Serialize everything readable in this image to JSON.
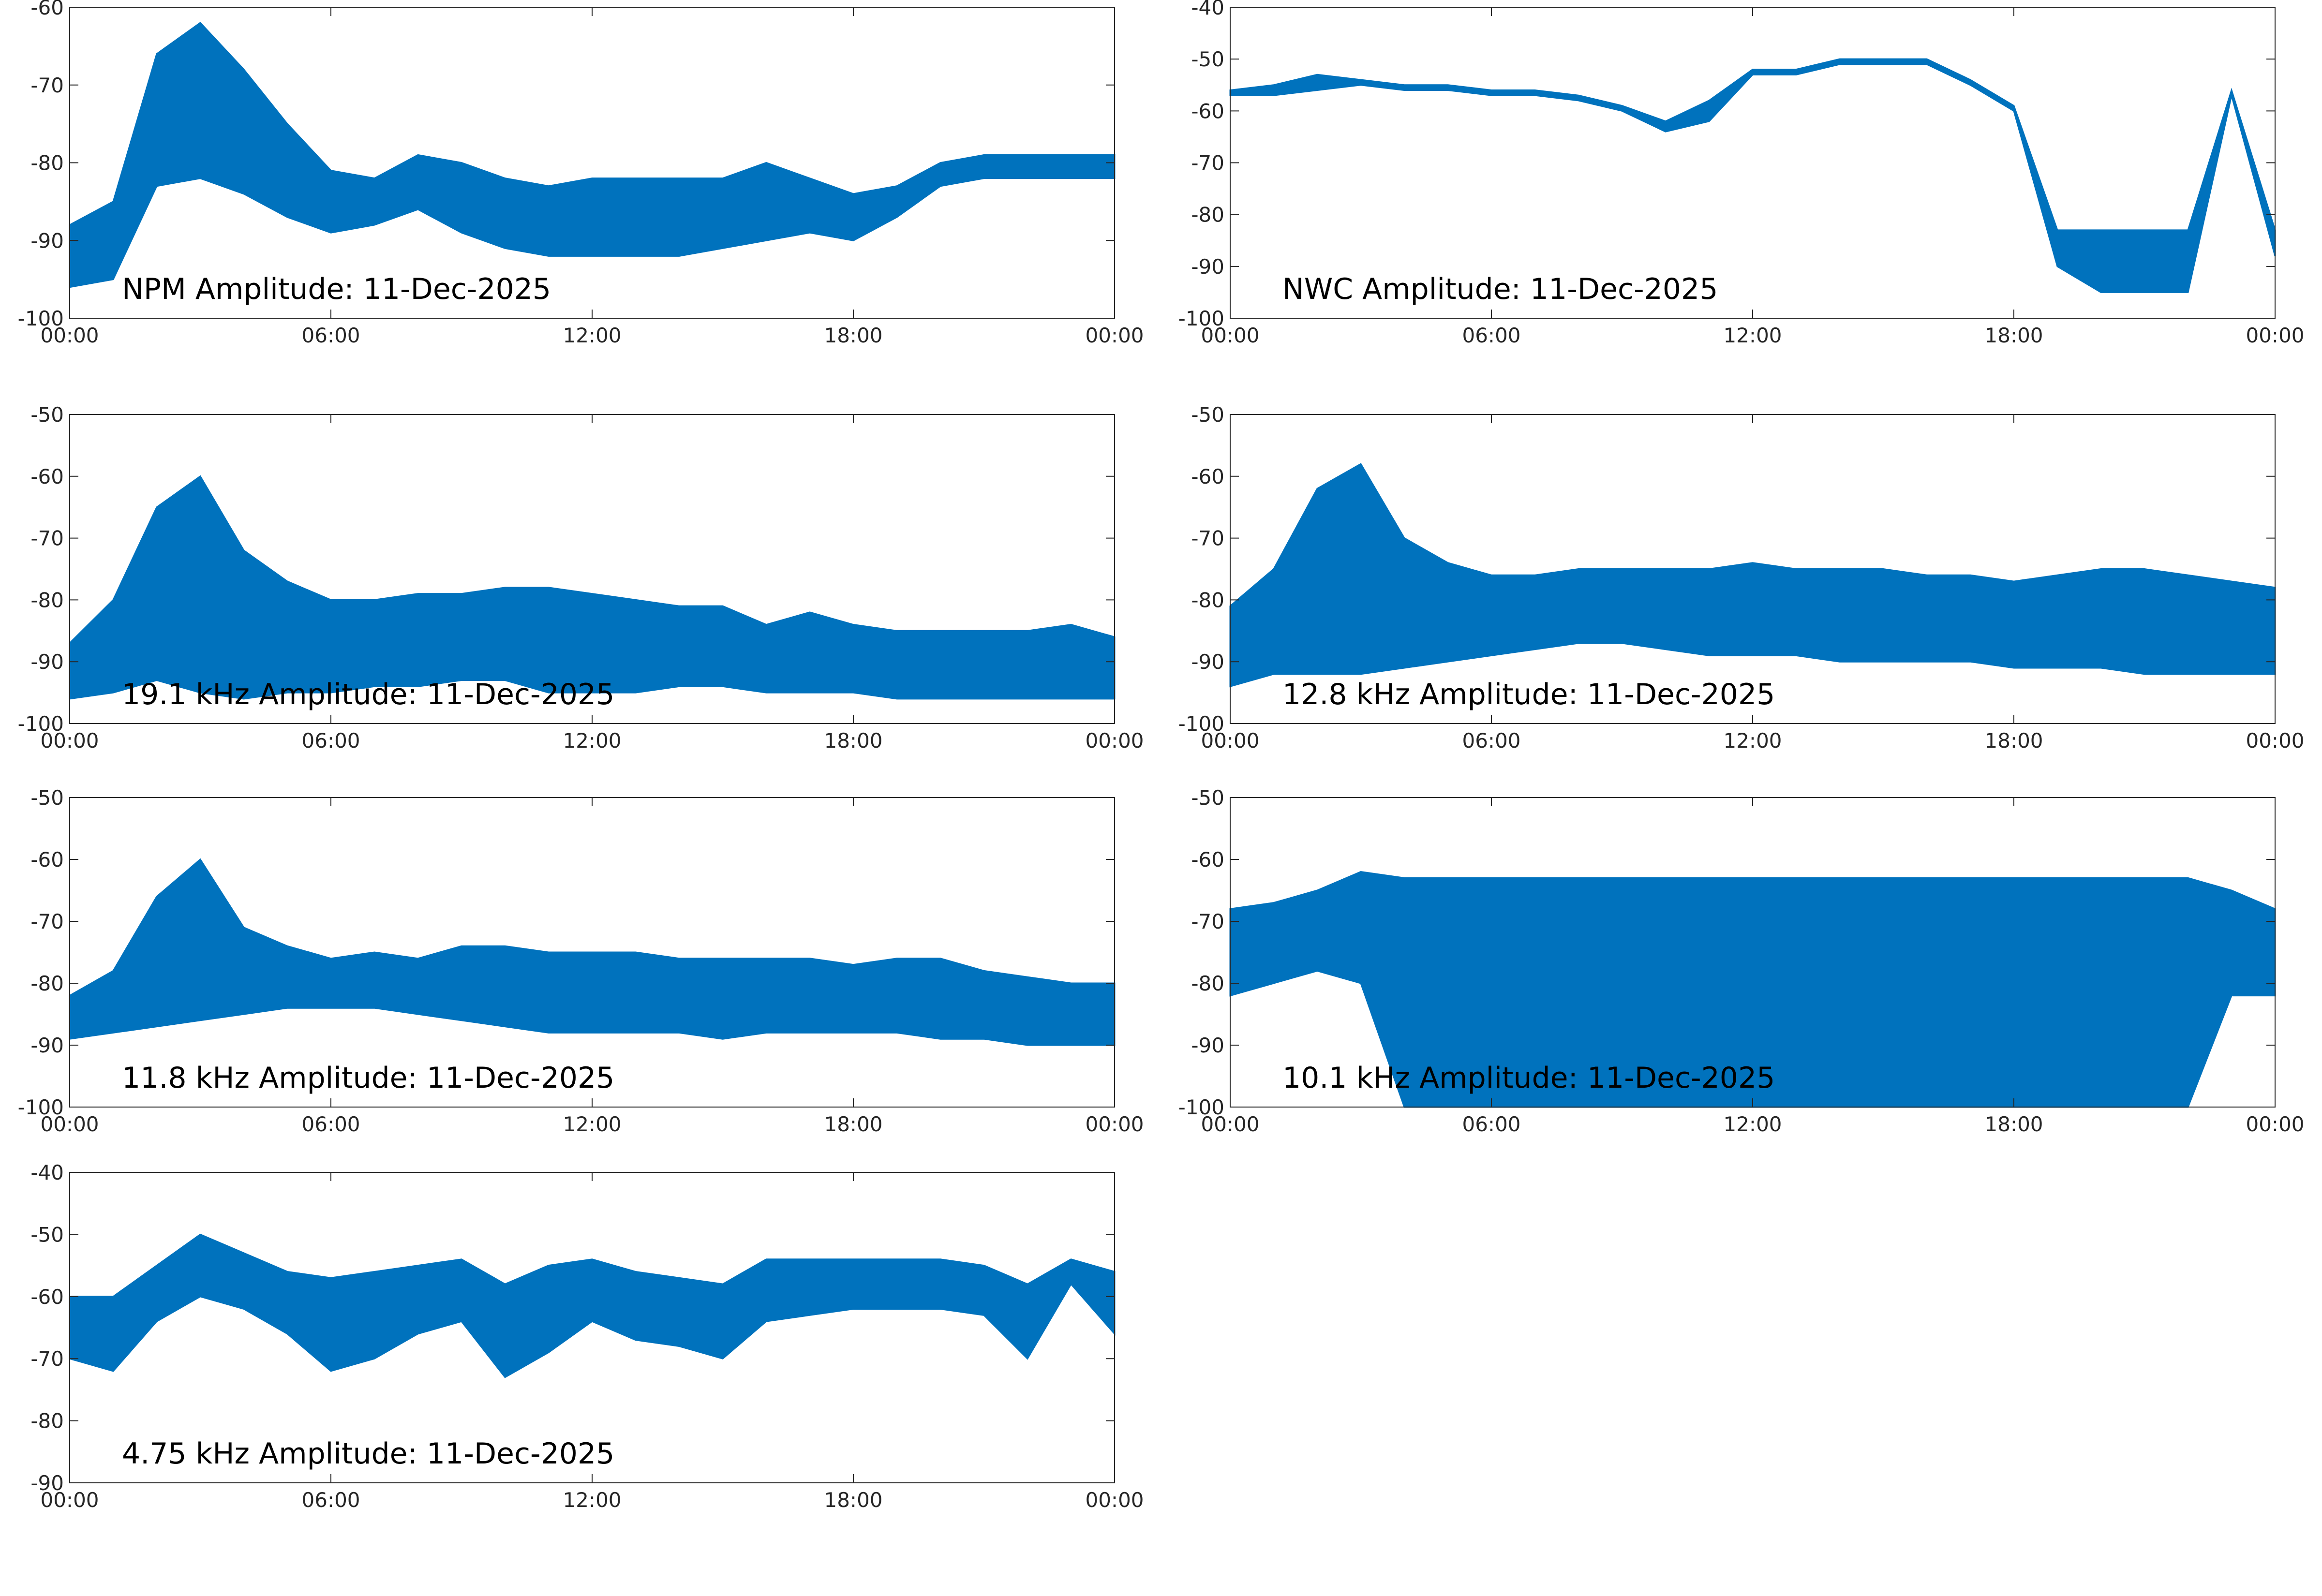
{
  "chart_data": [
    {
      "type": "band",
      "title": "NPM Amplitude: 11-Dec-2025",
      "color": "#0072bd",
      "x": [
        0,
        1,
        2,
        3,
        4,
        5,
        6,
        7,
        8,
        9,
        10,
        11,
        12,
        13,
        14,
        15,
        16,
        17,
        18,
        19,
        20,
        21,
        22,
        23,
        24
      ],
      "high": [
        -88,
        -85,
        -66,
        -62,
        -68,
        -75,
        -81,
        -82,
        -79,
        -80,
        -82,
        -83,
        -82,
        -82,
        -82,
        -82,
        -80,
        -82,
        -84,
        -83,
        -80,
        -79,
        -79,
        -79,
        -79
      ],
      "low": [
        -96,
        -95,
        -83,
        -82,
        -84,
        -87,
        -89,
        -88,
        -86,
        -89,
        -91,
        -92,
        -92,
        -92,
        -92,
        -91,
        -90,
        -89,
        -90,
        -87,
        -83,
        -82,
        -82,
        -82,
        -82
      ],
      "xlim": [
        0,
        24
      ],
      "xticks": [
        {
          "value": 0,
          "label": "00:00"
        },
        {
          "value": 6,
          "label": "06:00"
        },
        {
          "value": 12,
          "label": "12:00"
        },
        {
          "value": 18,
          "label": "18:00"
        },
        {
          "value": 24,
          "label": "00:00"
        }
      ],
      "ylim": [
        -100,
        -60
      ],
      "yticks": [
        -100,
        -90,
        -80,
        -70,
        -60
      ]
    },
    {
      "type": "band",
      "title": "NWC Amplitude: 11-Dec-2025",
      "color": "#0072bd",
      "x": [
        0,
        1,
        2,
        3,
        4,
        5,
        6,
        7,
        8,
        9,
        10,
        11,
        12,
        13,
        14,
        15,
        16,
        17,
        18,
        19,
        20,
        21,
        22,
        23,
        24
      ],
      "high": [
        -56,
        -55,
        -53,
        -54,
        -55,
        -55,
        -56,
        -56,
        -57,
        -59,
        -62,
        -58,
        -52,
        -52,
        -50,
        -50,
        -50,
        -54,
        -59,
        -83,
        -83,
        -83,
        -83,
        -56,
        -83
      ],
      "low": [
        -57,
        -57,
        -56,
        -55,
        -56,
        -56,
        -57,
        -57,
        -58,
        -60,
        -64,
        -62,
        -53,
        -53,
        -51,
        -51,
        -51,
        -55,
        -60,
        -90,
        -95,
        -95,
        -95,
        -57,
        -88
      ],
      "xlim": [
        0,
        24
      ],
      "xticks": [
        {
          "value": 0,
          "label": "00:00"
        },
        {
          "value": 6,
          "label": "06:00"
        },
        {
          "value": 12,
          "label": "12:00"
        },
        {
          "value": 18,
          "label": "18:00"
        },
        {
          "value": 24,
          "label": "00:00"
        }
      ],
      "ylim": [
        -100,
        -40
      ],
      "yticks": [
        -100,
        -90,
        -80,
        -70,
        -60,
        -50,
        -40
      ]
    },
    {
      "type": "band",
      "title": "19.1 kHz Amplitude: 11-Dec-2025",
      "color": "#0072bd",
      "x": [
        0,
        1,
        2,
        3,
        4,
        5,
        6,
        7,
        8,
        9,
        10,
        11,
        12,
        13,
        14,
        15,
        16,
        17,
        18,
        19,
        20,
        21,
        22,
        23,
        24
      ],
      "high": [
        -87,
        -80,
        -65,
        -60,
        -72,
        -77,
        -80,
        -80,
        -79,
        -79,
        -78,
        -78,
        -79,
        -80,
        -81,
        -81,
        -84,
        -82,
        -84,
        -85,
        -85,
        -85,
        -85,
        -84,
        -86
      ],
      "low": [
        -96,
        -95,
        -93,
        -95,
        -96,
        -95,
        -95,
        -94,
        -94,
        -93,
        -93,
        -95,
        -95,
        -95,
        -94,
        -94,
        -95,
        -95,
        -95,
        -96,
        -96,
        -96,
        -96,
        -96,
        -96
      ],
      "xlim": [
        0,
        24
      ],
      "xticks": [
        {
          "value": 0,
          "label": "00:00"
        },
        {
          "value": 6,
          "label": "06:00"
        },
        {
          "value": 12,
          "label": "12:00"
        },
        {
          "value": 18,
          "label": "18:00"
        },
        {
          "value": 24,
          "label": "00:00"
        }
      ],
      "ylim": [
        -100,
        -50
      ],
      "yticks": [
        -100,
        -90,
        -80,
        -70,
        -60,
        -50
      ]
    },
    {
      "type": "band",
      "title": "12.8 kHz Amplitude: 11-Dec-2025",
      "color": "#0072bd",
      "x": [
        0,
        1,
        2,
        3,
        4,
        5,
        6,
        7,
        8,
        9,
        10,
        11,
        12,
        13,
        14,
        15,
        16,
        17,
        18,
        19,
        20,
        21,
        22,
        23,
        24
      ],
      "high": [
        -81,
        -75,
        -62,
        -58,
        -70,
        -74,
        -76,
        -76,
        -75,
        -75,
        -75,
        -75,
        -74,
        -75,
        -75,
        -75,
        -76,
        -76,
        -77,
        -76,
        -75,
        -75,
        -76,
        -77,
        -78
      ],
      "low": [
        -94,
        -92,
        -92,
        -92,
        -91,
        -90,
        -89,
        -88,
        -87,
        -87,
        -88,
        -89,
        -89,
        -89,
        -90,
        -90,
        -90,
        -90,
        -91,
        -91,
        -91,
        -92,
        -92,
        -92,
        -92
      ],
      "xlim": [
        0,
        24
      ],
      "xticks": [
        {
          "value": 0,
          "label": "00:00"
        },
        {
          "value": 6,
          "label": "06:00"
        },
        {
          "value": 12,
          "label": "12:00"
        },
        {
          "value": 18,
          "label": "18:00"
        },
        {
          "value": 24,
          "label": "00:00"
        }
      ],
      "ylim": [
        -100,
        -50
      ],
      "yticks": [
        -100,
        -90,
        -80,
        -70,
        -60,
        -50
      ]
    },
    {
      "type": "band",
      "title": "11.8 kHz Amplitude: 11-Dec-2025",
      "color": "#0072bd",
      "x": [
        0,
        1,
        2,
        3,
        4,
        5,
        6,
        7,
        8,
        9,
        10,
        11,
        12,
        13,
        14,
        15,
        16,
        17,
        18,
        19,
        20,
        21,
        22,
        23,
        24
      ],
      "high": [
        -82,
        -78,
        -66,
        -60,
        -71,
        -74,
        -76,
        -75,
        -76,
        -74,
        -74,
        -75,
        -75,
        -75,
        -76,
        -76,
        -76,
        -76,
        -77,
        -76,
        -76,
        -78,
        -79,
        -80,
        -80
      ],
      "low": [
        -89,
        -88,
        -87,
        -86,
        -85,
        -84,
        -84,
        -84,
        -85,
        -86,
        -87,
        -88,
        -88,
        -88,
        -88,
        -89,
        -88,
        -88,
        -88,
        -88,
        -89,
        -89,
        -90,
        -90,
        -90
      ],
      "xlim": [
        0,
        24
      ],
      "xticks": [
        {
          "value": 0,
          "label": "00:00"
        },
        {
          "value": 6,
          "label": "06:00"
        },
        {
          "value": 12,
          "label": "12:00"
        },
        {
          "value": 18,
          "label": "18:00"
        },
        {
          "value": 24,
          "label": "00:00"
        }
      ],
      "ylim": [
        -100,
        -50
      ],
      "yticks": [
        -100,
        -90,
        -80,
        -70,
        -60,
        -50
      ]
    },
    {
      "type": "band",
      "title": "10.1 kHz Amplitude: 11-Dec-2025",
      "color": "#0072bd",
      "x": [
        0,
        1,
        2,
        3,
        4,
        5,
        6,
        7,
        8,
        9,
        10,
        11,
        12,
        13,
        14,
        15,
        16,
        17,
        18,
        19,
        20,
        21,
        22,
        23,
        24
      ],
      "high": [
        -68,
        -67,
        -65,
        -62,
        -63,
        -63,
        -63,
        -63,
        -63,
        -63,
        -63,
        -63,
        -63,
        -63,
        -63,
        -63,
        -63,
        -63,
        -63,
        -63,
        -63,
        -63,
        -63,
        -65,
        -68
      ],
      "low": [
        -82,
        -80,
        -78,
        -80,
        -100,
        -100,
        -100,
        -100,
        -100,
        -100,
        -100,
        -100,
        -100,
        -100,
        -100,
        -100,
        -100,
        -100,
        -100,
        -100,
        -100,
        -100,
        -100,
        -82,
        -82
      ],
      "xlim": [
        0,
        24
      ],
      "xticks": [
        {
          "value": 0,
          "label": "00:00"
        },
        {
          "value": 6,
          "label": "06:00"
        },
        {
          "value": 12,
          "label": "12:00"
        },
        {
          "value": 18,
          "label": "18:00"
        },
        {
          "value": 24,
          "label": "00:00"
        }
      ],
      "ylim": [
        -100,
        -50
      ],
      "yticks": [
        -100,
        -90,
        -80,
        -70,
        -60,
        -50
      ]
    },
    {
      "type": "band",
      "title": "4.75 kHz Amplitude: 11-Dec-2025",
      "color": "#0072bd",
      "x": [
        0,
        1,
        2,
        3,
        4,
        5,
        6,
        7,
        8,
        9,
        10,
        11,
        12,
        13,
        14,
        15,
        16,
        17,
        18,
        19,
        20,
        21,
        22,
        23,
        24
      ],
      "high": [
        -60,
        -60,
        -55,
        -50,
        -53,
        -56,
        -57,
        -56,
        -55,
        -54,
        -58,
        -55,
        -54,
        -56,
        -57,
        -58,
        -54,
        -54,
        -54,
        -54,
        -54,
        -55,
        -58,
        -54,
        -56
      ],
      "low": [
        -70,
        -72,
        -64,
        -60,
        -62,
        -66,
        -72,
        -70,
        -66,
        -64,
        -73,
        -69,
        -64,
        -67,
        -68,
        -70,
        -64,
        -63,
        -62,
        -62,
        -62,
        -63,
        -70,
        -58,
        -66
      ],
      "xlim": [
        0,
        24
      ],
      "xticks": [
        {
          "value": 0,
          "label": "00:00"
        },
        {
          "value": 6,
          "label": "06:00"
        },
        {
          "value": 12,
          "label": "12:00"
        },
        {
          "value": 18,
          "label": "18:00"
        },
        {
          "value": 24,
          "label": "00:00"
        }
      ],
      "ylim": [
        -90,
        -40
      ],
      "yticks": [
        -90,
        -80,
        -70,
        -60,
        -50,
        -40
      ]
    }
  ]
}
